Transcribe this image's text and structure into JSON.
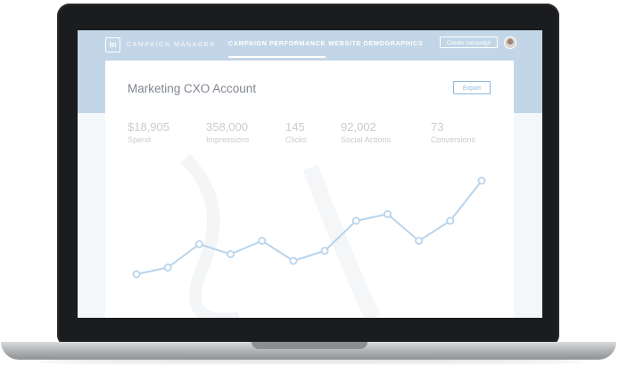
{
  "header": {
    "brand": "CAMPAIGN MANAGER",
    "logo_text": "in",
    "tabs": [
      {
        "label": "CAMPAIGN PERFORMANCE",
        "active": true
      },
      {
        "label": "WEBSITE DEMOGRAPHICS",
        "active": false
      }
    ],
    "create_campaign_label": "Create campaign"
  },
  "card": {
    "account_title": "Marketing CXO Account",
    "export_label": "Export",
    "stats": [
      {
        "value": "$18,905",
        "label": "Spend"
      },
      {
        "value": "358,000",
        "label": "Impressions"
      },
      {
        "value": "145",
        "label": "Clicks"
      },
      {
        "value": "92,002",
        "label": "Social Actions"
      },
      {
        "value": "73",
        "label": "Conversions"
      }
    ]
  },
  "chart_data": {
    "type": "line",
    "x": [
      1,
      2,
      3,
      4,
      5,
      6,
      7,
      8,
      9,
      10,
      11,
      12
    ],
    "values": [
      2,
      3,
      6.5,
      5,
      7,
      4,
      5.5,
      10,
      11,
      7,
      10,
      16
    ],
    "ylim": [
      0,
      18
    ],
    "grid": false,
    "line_color": "#b8d4ec",
    "point_fill": "#ffffff"
  },
  "colors": {
    "header_bg": "#c3d6e7",
    "accent": "#8fb8de",
    "bezel": "#1b1c1e"
  }
}
